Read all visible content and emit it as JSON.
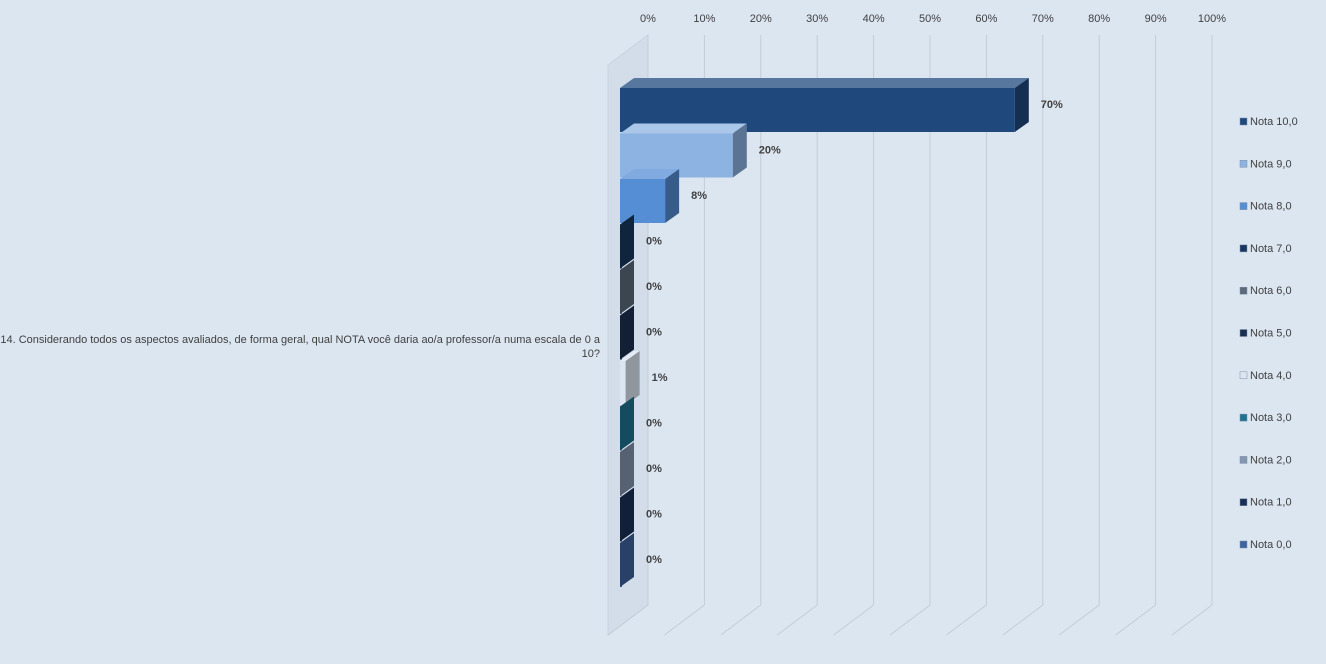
{
  "chart_data": {
    "type": "bar",
    "orientation": "horizontal",
    "style": "3d-clustered-bar",
    "category": "14. Considerando todos os aspectos avaliados, de forma geral, qual NOTA você daria ao/a professor/a numa escala de 0 a 10?",
    "xlim": [
      0,
      100
    ],
    "ticks": [
      "0%",
      "10%",
      "20%",
      "30%",
      "40%",
      "50%",
      "60%",
      "70%",
      "80%",
      "90%",
      "100%"
    ],
    "grid": true,
    "legend_position": "right",
    "series": [
      {
        "name": "Nota 10,0",
        "value": 70,
        "label": "70%",
        "color": "#1f497d"
      },
      {
        "name": "Nota 9,0",
        "value": 20,
        "label": "20%",
        "color": "#8db3e2"
      },
      {
        "name": "Nota 8,0",
        "value": 8,
        "label": "8%",
        "color": "#558ed5"
      },
      {
        "name": "Nota 7,0",
        "value": 0,
        "label": "0%",
        "color": "#17375e"
      },
      {
        "name": "Nota 6,0",
        "value": 0,
        "label": "0%",
        "color": "#5b6b7c"
      },
      {
        "name": "Nota 5,0",
        "value": 0,
        "label": "0%",
        "color": "#1b2f52"
      },
      {
        "name": "Nota 4,0",
        "value": 1,
        "label": "1%",
        "color": "#dce6f2"
      },
      {
        "name": "Nota 3,0",
        "value": 0,
        "label": "0%",
        "color": "#1f7391"
      },
      {
        "name": "Nota 2,0",
        "value": 0,
        "label": "0%",
        "color": "#8497b0"
      },
      {
        "name": "Nota 1,0",
        "value": 0,
        "label": "0%",
        "color": "#1a2f57"
      },
      {
        "name": "Nota 0,0",
        "value": 0,
        "label": "0%",
        "color": "#3f639e"
      }
    ]
  }
}
